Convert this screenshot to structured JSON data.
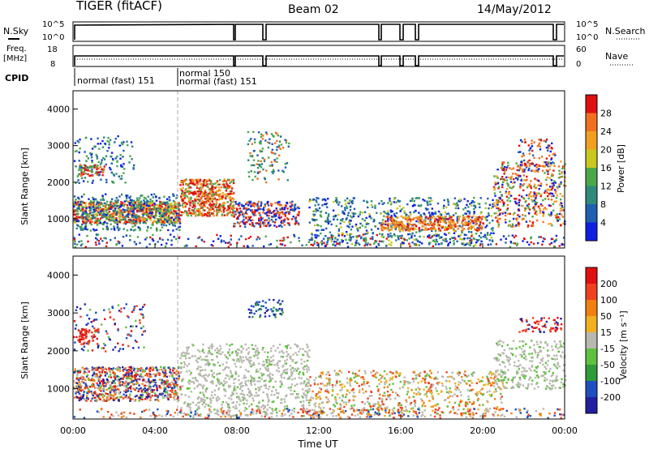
{
  "header": {
    "site": "TIGER (fitACF)",
    "beam": "Beam 02",
    "date": "14/May/2012"
  },
  "nsky_panel": {
    "left_label": "N.Sky",
    "left_ticks": [
      "10^5",
      "10^0"
    ],
    "right_ticks": [
      "10^5",
      "10^0"
    ],
    "right_label": "N.Search"
  },
  "freq_panel": {
    "left_label_line1": "Freq.",
    "left_label_line2": "[MHz]",
    "left_ticks": [
      "18",
      "8"
    ],
    "right_ticks": [
      "60",
      "0"
    ],
    "right_label": "Nave"
  },
  "cpid": {
    "label": "CPID",
    "segments": [
      "normal (fast) 151",
      "normal 150",
      "normal (fast) 151"
    ]
  },
  "colors": {
    "power_scale": [
      "#1020e0",
      "#1f5fb0",
      "#2f8a7a",
      "#4aa84a",
      "#c8c820",
      "#f0a020",
      "#f07020",
      "#e01010"
    ],
    "velocity_scale": [
      "#e01010",
      "#f04020",
      "#f08010",
      "#f0b020",
      "#b8b8b0",
      "#60c040",
      "#2f9a3a",
      "#1f4fc0",
      "#2020a0"
    ]
  },
  "chart_data": [
    {
      "type": "heatmap",
      "title": "",
      "xlabel": "",
      "ylabel": "Slant Range [km]",
      "x_ticks": [
        "00:00",
        "04:00",
        "08:00",
        "12:00",
        "16:00",
        "20:00",
        "00:00"
      ],
      "y_ticks": [
        1000,
        2000,
        3000,
        4000
      ],
      "xlim_hours": [
        0,
        24
      ],
      "ylim_km": [
        200,
        4500
      ],
      "colorbar": {
        "label": "Power [dB]",
        "ticks": [
          4,
          8,
          12,
          16,
          20,
          24,
          28
        ]
      }
    },
    {
      "type": "heatmap",
      "title": "",
      "xlabel": "Time UT",
      "ylabel": "Slant Range [km]",
      "x_ticks": [
        "00:00",
        "04:00",
        "08:00",
        "12:00",
        "16:00",
        "20:00",
        "00:00"
      ],
      "y_ticks": [
        1000,
        2000,
        3000,
        4000
      ],
      "xlim_hours": [
        0,
        24
      ],
      "ylim_km": [
        200,
        4500
      ],
      "colorbar": {
        "label": "Velocity [m s⁻¹]",
        "ticks": [
          200,
          100,
          50,
          15,
          -15,
          -50,
          -100,
          -200
        ]
      }
    }
  ]
}
